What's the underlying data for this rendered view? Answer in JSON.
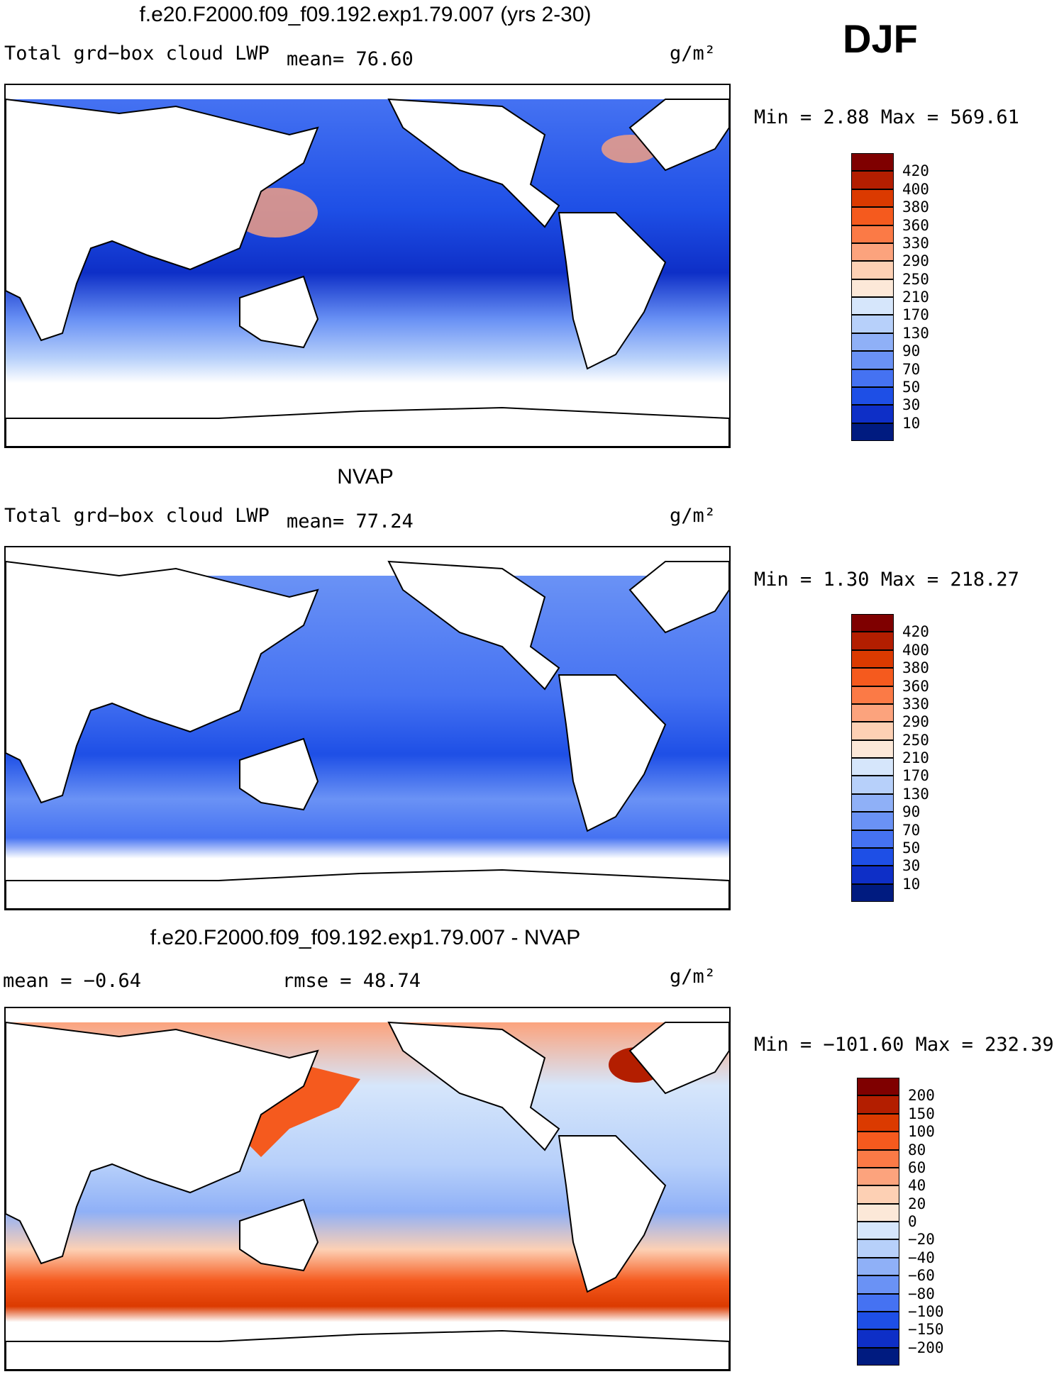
{
  "season": "DJF",
  "panels": [
    {
      "id": "model",
      "title": "f.e20.F2000.f09_f09.192.exp1.79.007 (yrs 2-30)",
      "variable": "Total grd−box cloud LWP",
      "stat_left": "mean=   76.60",
      "units": "g/m²",
      "minmax": "Min =    2.88  Max =  569.61",
      "scheme": "abs"
    },
    {
      "id": "obs",
      "title": "NVAP",
      "variable": "Total grd−box cloud LWP",
      "stat_left": "mean=   77.24",
      "units": "g/m²",
      "minmax": "Min =    1.30  Max =  218.27",
      "scheme": "abs"
    },
    {
      "id": "diff",
      "title": "f.e20.F2000.f09_f09.192.exp1.79.007 - NVAP",
      "variable": "mean =   −0.64",
      "stat_left": "rmse =   48.74",
      "units": "g/m²",
      "minmax": "Min = −101.60  Max =  232.39",
      "scheme": "diff"
    }
  ],
  "colorbars": {
    "abs": {
      "labels": [
        "420",
        "400",
        "380",
        "360",
        "330",
        "290",
        "250",
        "210",
        "170",
        "130",
        "90",
        "70",
        "50",
        "30",
        "10"
      ],
      "colors": [
        "#7f0000",
        "#b31e00",
        "#db3a00",
        "#f55a1e",
        "#fb7a46",
        "#fca37d",
        "#fdd0b4",
        "#fce8d8",
        "#d6e6fb",
        "#b7d0fa",
        "#8fb0f7",
        "#6a92f5",
        "#4572f2",
        "#1e4fe6",
        "#0e2fc7",
        "#001b80"
      ]
    },
    "diff": {
      "labels": [
        "200",
        "150",
        "100",
        "80",
        "60",
        "40",
        "20",
        "0",
        "−20",
        "−40",
        "−60",
        "−80",
        "−100",
        "−150",
        "−200"
      ],
      "colors": [
        "#7f0000",
        "#b31e00",
        "#db3a00",
        "#f55a1e",
        "#fb7a46",
        "#fca37d",
        "#fdd0b4",
        "#fce8d8",
        "#d6e6fb",
        "#b7d0fa",
        "#8fb0f7",
        "#6a92f5",
        "#4572f2",
        "#1e4fe6",
        "#0e2fc7",
        "#001b80"
      ]
    }
  }
}
